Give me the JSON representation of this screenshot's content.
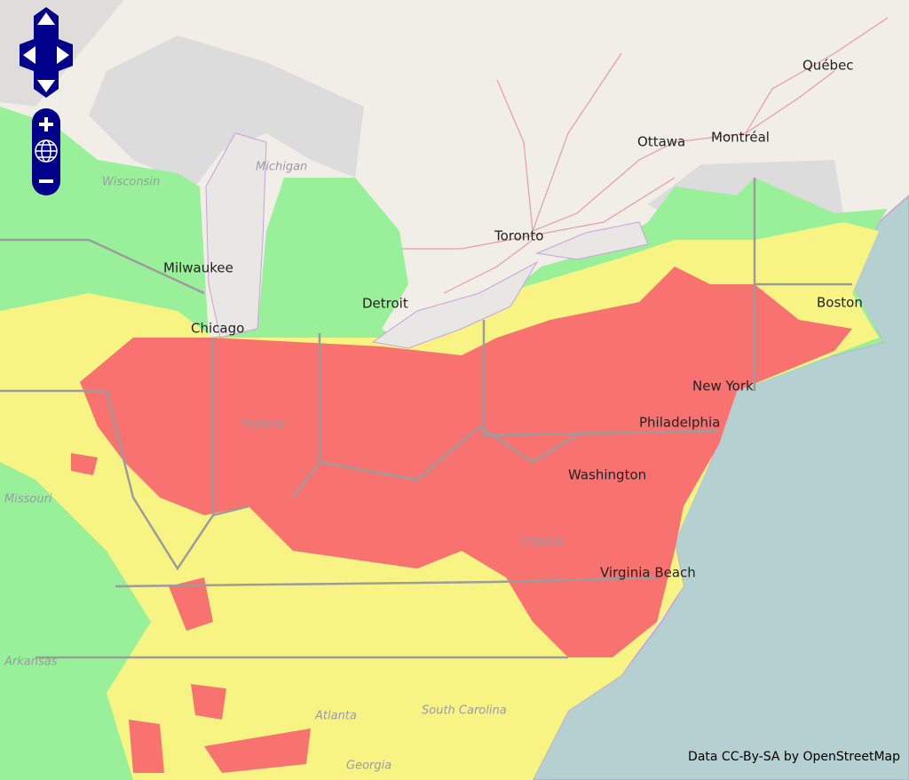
{
  "map": {
    "cities": [
      "Québec",
      "Ottawa",
      "Montréal",
      "Toronto",
      "Milwaukee",
      "Detroit",
      "Chicago",
      "Boston",
      "New York",
      "Philadelphia",
      "Washington",
      "Virginia Beach"
    ],
    "regions": [
      "Wisconsin",
      "Michigan",
      "Missouri",
      "Indiana",
      "Arkansas",
      "Virginia",
      "Atlanta",
      "South Carolina",
      "Georgia"
    ],
    "attribution": "Data CC-By-SA by OpenStreetMap"
  }
}
